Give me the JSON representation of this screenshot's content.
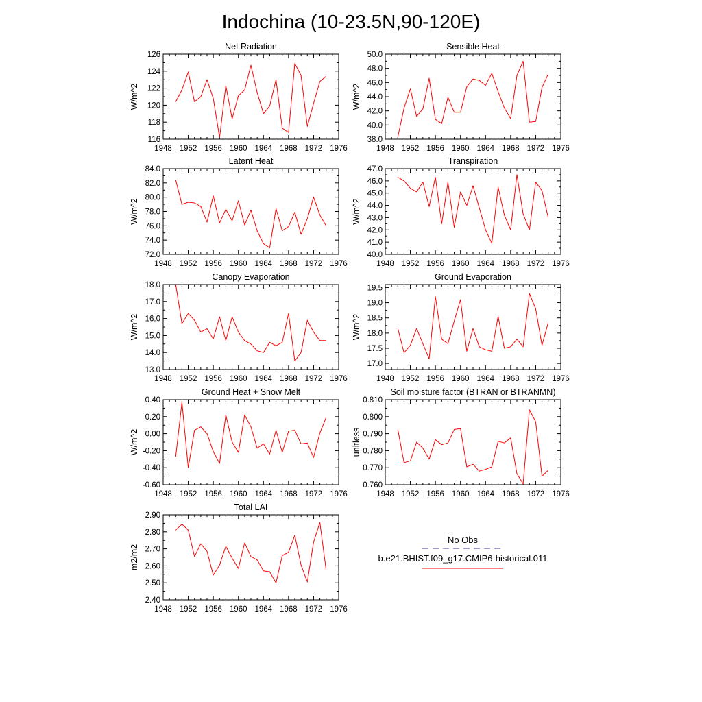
{
  "figure_title": "Indochina (10-23.5N,90-120E)",
  "colors": {
    "series": "#ff0000",
    "obs": "#3a3a8c",
    "axis": "#000000"
  },
  "legend": {
    "obs_label": "No Obs",
    "model_label": "b.e21.BHIST.f09_g17.CMIP6-historical.011"
  },
  "chart_data": [
    {
      "type": "line",
      "title": "Net Radiation",
      "ylabel": "W/m^2",
      "xlim": [
        1948,
        1976
      ],
      "xticks": [
        1948,
        1952,
        1956,
        1960,
        1964,
        1968,
        1972,
        1976
      ],
      "ylim": [
        116,
        126
      ],
      "yticks": [
        116,
        118,
        120,
        122,
        124,
        126
      ],
      "ytick_labels": [
        "116",
        "118",
        "120",
        "122",
        "124",
        "126"
      ],
      "x": [
        1950,
        1951,
        1952,
        1953,
        1954,
        1955,
        1956,
        1957,
        1958,
        1959,
        1960,
        1961,
        1962,
        1963,
        1964,
        1965,
        1966,
        1967,
        1968,
        1969,
        1970,
        1971,
        1972,
        1973,
        1974
      ],
      "series": [
        {
          "name": "b.e21.BHIST.f09_g17.CMIP6-historical.011",
          "values": [
            120.4,
            121.8,
            123.9,
            120.4,
            121.0,
            123.0,
            120.8,
            116.2,
            122.3,
            118.4,
            121.1,
            121.8,
            124.7,
            121.5,
            119.0,
            119.9,
            123.0,
            117.3,
            116.8,
            124.9,
            123.5,
            117.5,
            120.2,
            122.8,
            123.4
          ]
        }
      ]
    },
    {
      "type": "line",
      "title": "Sensible Heat",
      "ylabel": "W/m^2",
      "xlim": [
        1948,
        1976
      ],
      "xticks": [
        1948,
        1952,
        1956,
        1960,
        1964,
        1968,
        1972,
        1976
      ],
      "ylim": [
        38,
        50
      ],
      "yticks": [
        38,
        40,
        42,
        44,
        46,
        48,
        50
      ],
      "ytick_labels": [
        "38.0",
        "40.0",
        "42.0",
        "44.0",
        "46.0",
        "48.0",
        "50.0"
      ],
      "x": [
        1950,
        1951,
        1952,
        1953,
        1954,
        1955,
        1956,
        1957,
        1958,
        1959,
        1960,
        1961,
        1962,
        1963,
        1964,
        1965,
        1966,
        1967,
        1968,
        1969,
        1970,
        1971,
        1972,
        1973,
        1974
      ],
      "series": [
        {
          "name": "b.e21.BHIST.f09_g17.CMIP6-historical.011",
          "values": [
            38.3,
            42.4,
            45.1,
            41.2,
            42.3,
            46.6,
            40.8,
            40.2,
            43.9,
            41.8,
            41.8,
            45.4,
            46.5,
            46.3,
            45.6,
            47.3,
            44.7,
            42.4,
            40.9,
            47.0,
            49.0,
            40.4,
            40.5,
            45.3,
            47.2
          ]
        }
      ]
    },
    {
      "type": "line",
      "title": "Latent Heat",
      "ylabel": "W/m^2",
      "xlim": [
        1948,
        1976
      ],
      "xticks": [
        1948,
        1952,
        1956,
        1960,
        1964,
        1968,
        1972,
        1976
      ],
      "ylim": [
        72,
        84
      ],
      "yticks": [
        72,
        74,
        76,
        78,
        80,
        82,
        84
      ],
      "ytick_labels": [
        "72.0",
        "74.0",
        "76.0",
        "78.0",
        "80.0",
        "82.0",
        "84.0"
      ],
      "x": [
        1950,
        1951,
        1952,
        1953,
        1954,
        1955,
        1956,
        1957,
        1958,
        1959,
        1960,
        1961,
        1962,
        1963,
        1964,
        1965,
        1966,
        1967,
        1968,
        1969,
        1970,
        1971,
        1972,
        1973,
        1974
      ],
      "series": [
        {
          "name": "b.e21.BHIST.f09_g17.CMIP6-historical.011",
          "values": [
            82.4,
            79.0,
            79.3,
            79.2,
            78.7,
            76.5,
            80.2,
            76.4,
            78.3,
            76.7,
            79.5,
            76.1,
            78.2,
            75.3,
            73.5,
            72.9,
            78.4,
            75.3,
            75.9,
            77.9,
            74.8,
            77.0,
            80.0,
            77.5,
            76.0
          ]
        }
      ]
    },
    {
      "type": "line",
      "title": "Transpiration",
      "ylabel": "W/m^2",
      "xlim": [
        1948,
        1976
      ],
      "xticks": [
        1948,
        1952,
        1956,
        1960,
        1964,
        1968,
        1972,
        1976
      ],
      "ylim": [
        40,
        47
      ],
      "yticks": [
        40,
        41,
        42,
        43,
        44,
        45,
        46,
        47
      ],
      "ytick_labels": [
        "40.0",
        "41.0",
        "42.0",
        "43.0",
        "44.0",
        "45.0",
        "46.0",
        "47.0"
      ],
      "x": [
        1950,
        1951,
        1952,
        1953,
        1954,
        1955,
        1956,
        1957,
        1958,
        1959,
        1960,
        1961,
        1962,
        1963,
        1964,
        1965,
        1966,
        1967,
        1968,
        1969,
        1970,
        1971,
        1972,
        1973,
        1974
      ],
      "series": [
        {
          "name": "b.e21.BHIST.f09_g17.CMIP6-historical.011",
          "values": [
            46.3,
            46.0,
            45.4,
            45.1,
            45.9,
            43.9,
            46.3,
            42.5,
            45.9,
            42.2,
            45.1,
            44.0,
            45.6,
            43.8,
            42.0,
            40.9,
            45.5,
            43.2,
            42.0,
            46.5,
            43.3,
            42.0,
            45.9,
            45.2,
            43.0
          ]
        }
      ]
    },
    {
      "type": "line",
      "title": "Canopy Evaporation",
      "ylabel": "W/m^2",
      "xlim": [
        1948,
        1976
      ],
      "xticks": [
        1948,
        1952,
        1956,
        1960,
        1964,
        1968,
        1972,
        1976
      ],
      "ylim": [
        13,
        18
      ],
      "yticks": [
        13,
        14,
        15,
        16,
        17,
        18
      ],
      "ytick_labels": [
        "13.0",
        "14.0",
        "15.0",
        "16.0",
        "17.0",
        "18.0"
      ],
      "x": [
        1950,
        1951,
        1952,
        1953,
        1954,
        1955,
        1956,
        1957,
        1958,
        1959,
        1960,
        1961,
        1962,
        1963,
        1964,
        1965,
        1966,
        1967,
        1968,
        1969,
        1970,
        1971,
        1972,
        1973,
        1974
      ],
      "series": [
        {
          "name": "b.e21.BHIST.f09_g17.CMIP6-historical.011",
          "values": [
            18.0,
            15.7,
            16.3,
            15.9,
            15.2,
            15.4,
            14.8,
            16.1,
            14.7,
            16.1,
            15.2,
            14.7,
            14.5,
            14.1,
            14.0,
            14.6,
            14.4,
            14.6,
            16.3,
            13.5,
            14.0,
            15.9,
            15.2,
            14.7,
            14.7
          ]
        }
      ]
    },
    {
      "type": "line",
      "title": "Ground Evaporation",
      "ylabel": "W/m^2",
      "xlim": [
        1948,
        1976
      ],
      "xticks": [
        1948,
        1952,
        1956,
        1960,
        1964,
        1968,
        1972,
        1976
      ],
      "ylim": [
        16.8,
        19.6
      ],
      "yticks": [
        17.0,
        17.5,
        18.0,
        18.5,
        19.0,
        19.5
      ],
      "ytick_labels": [
        "17.0",
        "17.5",
        "18.0",
        "18.5",
        "19.0",
        "19.5"
      ],
      "x": [
        1950,
        1951,
        1952,
        1953,
        1954,
        1955,
        1956,
        1957,
        1958,
        1959,
        1960,
        1961,
        1962,
        1963,
        1964,
        1965,
        1966,
        1967,
        1968,
        1969,
        1970,
        1971,
        1972,
        1973,
        1974
      ],
      "series": [
        {
          "name": "b.e21.BHIST.f09_g17.CMIP6-historical.011",
          "values": [
            18.15,
            17.35,
            17.6,
            18.15,
            17.65,
            17.15,
            19.2,
            17.8,
            17.65,
            18.4,
            19.1,
            17.4,
            18.15,
            17.55,
            17.45,
            17.4,
            18.55,
            17.5,
            17.55,
            17.8,
            17.55,
            19.3,
            18.8,
            17.6,
            18.35
          ]
        }
      ]
    },
    {
      "type": "line",
      "title": "Ground Heat + Snow Melt",
      "ylabel": "W/m^2",
      "xlim": [
        1948,
        1976
      ],
      "xticks": [
        1948,
        1952,
        1956,
        1960,
        1964,
        1968,
        1972,
        1976
      ],
      "ylim": [
        -0.6,
        0.4
      ],
      "yticks": [
        -0.6,
        -0.4,
        -0.2,
        0.0,
        0.2,
        0.4
      ],
      "ytick_labels": [
        "-0.60",
        "-0.40",
        "-0.20",
        "0.00",
        "0.20",
        "0.40"
      ],
      "x": [
        1950,
        1951,
        1952,
        1953,
        1954,
        1955,
        1956,
        1957,
        1958,
        1959,
        1960,
        1961,
        1962,
        1963,
        1964,
        1965,
        1966,
        1967,
        1968,
        1969,
        1970,
        1971,
        1972,
        1973,
        1974
      ],
      "series": [
        {
          "name": "b.e21.BHIST.f09_g17.CMIP6-historical.011",
          "values": [
            -0.27,
            0.37,
            -0.4,
            0.04,
            0.08,
            0.0,
            -0.21,
            -0.35,
            0.22,
            -0.1,
            -0.22,
            0.22,
            0.08,
            -0.17,
            -0.12,
            -0.24,
            0.04,
            -0.22,
            0.03,
            0.04,
            -0.12,
            -0.11,
            -0.28,
            0.01,
            0.19
          ]
        }
      ]
    },
    {
      "type": "line",
      "title": "Soil moisture factor (BTRAN or BTRANMN)",
      "ylabel": "unitless",
      "xlim": [
        1948,
        1976
      ],
      "xticks": [
        1948,
        1952,
        1956,
        1960,
        1964,
        1968,
        1972,
        1976
      ],
      "ylim": [
        0.76,
        0.81
      ],
      "yticks": [
        0.76,
        0.77,
        0.78,
        0.79,
        0.8,
        0.81
      ],
      "ytick_labels": [
        "0.760",
        "0.770",
        "0.780",
        "0.790",
        "0.800",
        "0.810"
      ],
      "x": [
        1950,
        1951,
        1952,
        1953,
        1954,
        1955,
        1956,
        1957,
        1958,
        1959,
        1960,
        1961,
        1962,
        1963,
        1964,
        1965,
        1966,
        1967,
        1968,
        1969,
        1970,
        1971,
        1972,
        1973,
        1974
      ],
      "series": [
        {
          "name": "b.e21.BHIST.f09_g17.CMIP6-historical.011",
          "values": [
            0.7925,
            0.773,
            0.774,
            0.785,
            0.7815,
            0.775,
            0.7865,
            0.7835,
            0.7845,
            0.7925,
            0.793,
            0.7705,
            0.772,
            0.768,
            0.769,
            0.7705,
            0.7855,
            0.7845,
            0.7875,
            0.7665,
            0.7605,
            0.804,
            0.797,
            0.765,
            0.7685
          ]
        }
      ]
    },
    {
      "type": "line",
      "title": "Total LAI",
      "ylabel": "m2/m2",
      "xlim": [
        1948,
        1976
      ],
      "xticks": [
        1948,
        1952,
        1956,
        1960,
        1964,
        1968,
        1972,
        1976
      ],
      "ylim": [
        2.4,
        2.9
      ],
      "yticks": [
        2.4,
        2.5,
        2.6,
        2.7,
        2.8,
        2.9
      ],
      "ytick_labels": [
        "2.40",
        "2.50",
        "2.60",
        "2.70",
        "2.80",
        "2.90"
      ],
      "x": [
        1950,
        1951,
        1952,
        1953,
        1954,
        1955,
        1956,
        1957,
        1958,
        1959,
        1960,
        1961,
        1962,
        1963,
        1964,
        1965,
        1966,
        1967,
        1968,
        1969,
        1970,
        1971,
        1972,
        1973,
        1974
      ],
      "series": [
        {
          "name": "b.e21.BHIST.f09_g17.CMIP6-historical.011",
          "values": [
            2.81,
            2.845,
            2.81,
            2.655,
            2.73,
            2.685,
            2.545,
            2.605,
            2.715,
            2.645,
            2.585,
            2.735,
            2.655,
            2.635,
            2.57,
            2.565,
            2.5,
            2.66,
            2.68,
            2.78,
            2.605,
            2.505,
            2.74,
            2.855,
            2.575
          ]
        }
      ]
    }
  ]
}
